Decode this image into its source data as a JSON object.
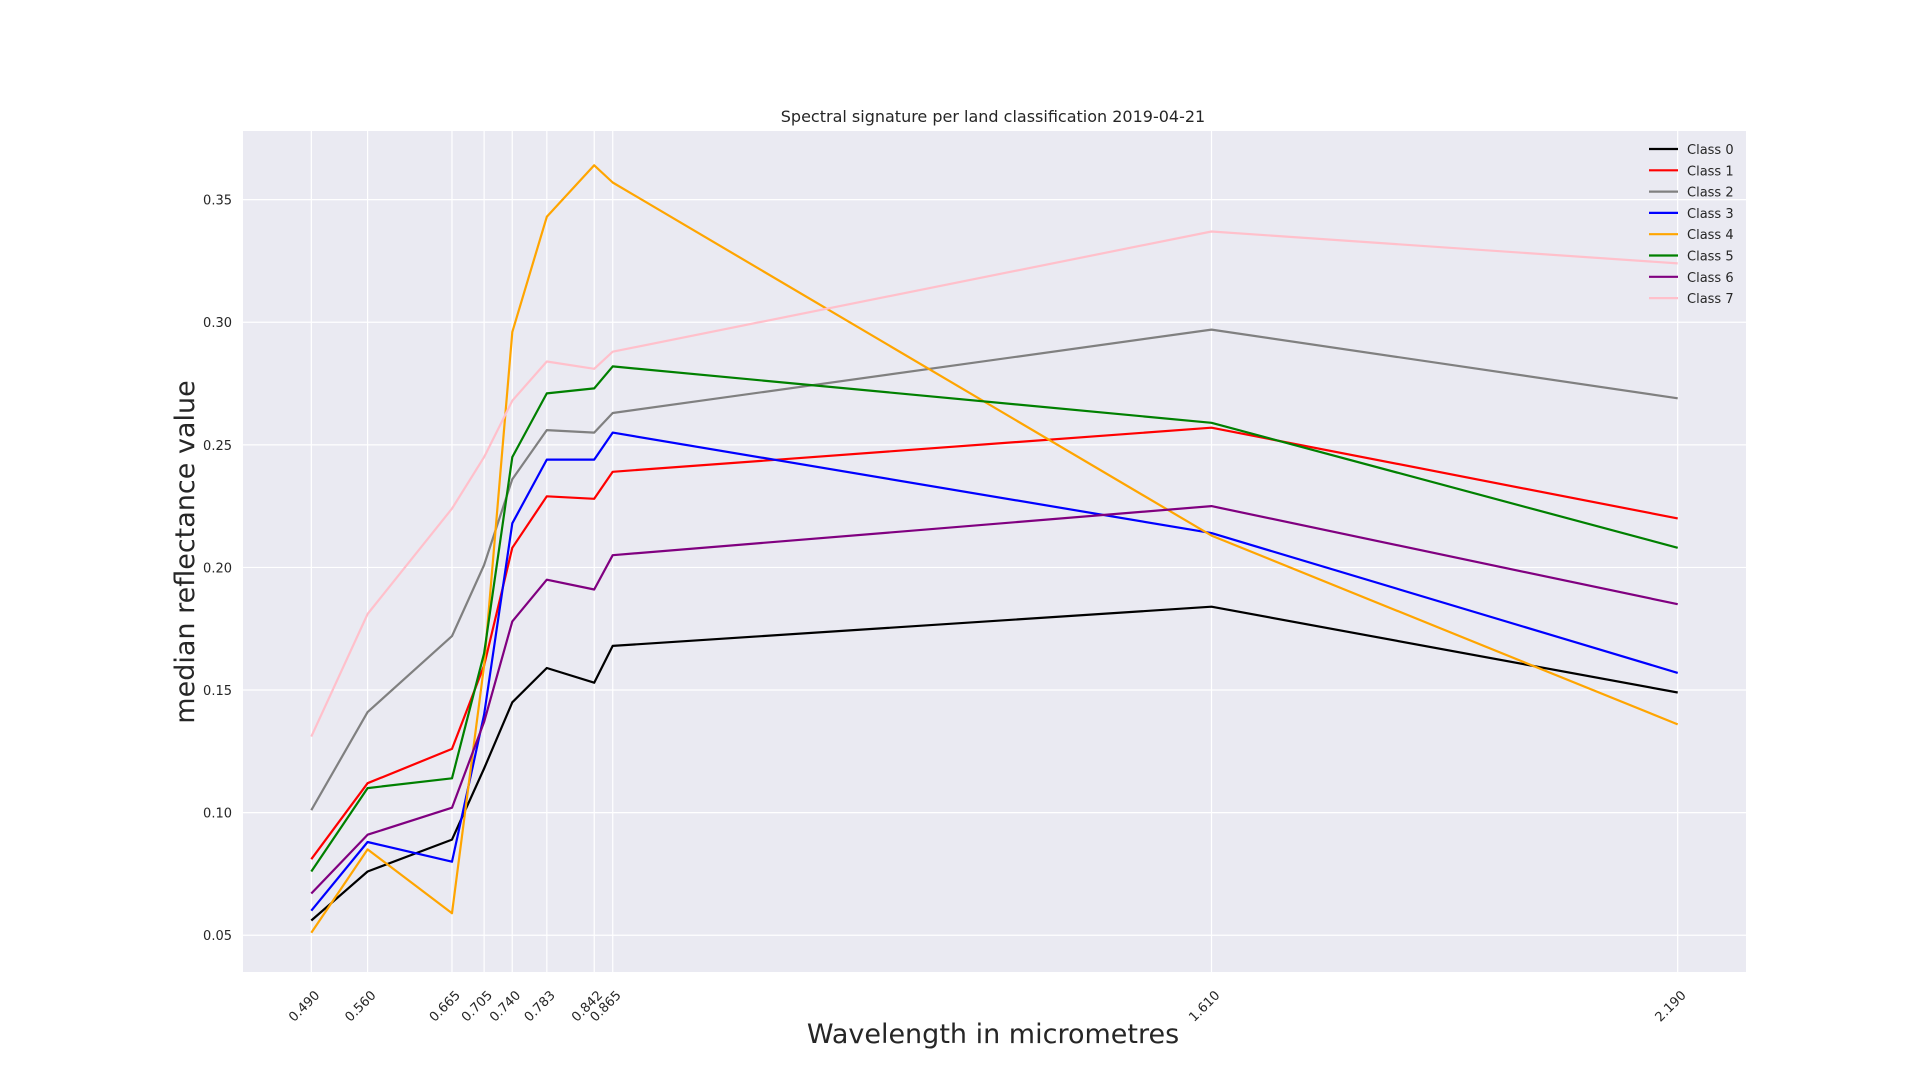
{
  "chart_data": {
    "type": "line",
    "title": "Spectral signature per land classification 2019-04-21",
    "xlabel": "Wavelength in micrometres",
    "ylabel": "median reflectance value",
    "x": [
      0.49,
      0.56,
      0.665,
      0.705,
      0.74,
      0.783,
      0.842,
      0.865,
      1.61,
      2.19
    ],
    "x_tick_labels": [
      "0.490",
      "0.560",
      "0.665",
      "0.705",
      "0.740",
      "0.783",
      "0.842",
      "0.865",
      "1.610",
      "2.190"
    ],
    "y_ticks": [
      0.05,
      0.1,
      0.15,
      0.2,
      0.25,
      0.3,
      0.35
    ],
    "y_tick_labels": [
      "0.05",
      "0.10",
      "0.15",
      "0.20",
      "0.25",
      "0.30",
      "0.35"
    ],
    "xlim": [
      0.405,
      2.275
    ],
    "ylim": [
      0.035,
      0.378
    ],
    "grid": true,
    "legend_position": "top-right",
    "series": [
      {
        "name": "Class 0",
        "color": "#000000",
        "values": [
          0.056,
          0.076,
          0.089,
          0.118,
          0.145,
          0.159,
          0.153,
          0.168,
          0.184,
          0.149
        ]
      },
      {
        "name": "Class 1",
        "color": "#ff0000",
        "values": [
          0.081,
          0.112,
          0.126,
          0.16,
          0.208,
          0.229,
          0.228,
          0.239,
          0.257,
          0.22
        ]
      },
      {
        "name": "Class 2",
        "color": "#808080",
        "values": [
          0.101,
          0.141,
          0.172,
          0.201,
          0.236,
          0.256,
          0.255,
          0.263,
          0.297,
          0.269
        ]
      },
      {
        "name": "Class 3",
        "color": "#0000ff",
        "values": [
          0.06,
          0.088,
          0.08,
          0.14,
          0.218,
          0.244,
          0.244,
          0.255,
          0.214,
          0.157
        ]
      },
      {
        "name": "Class 4",
        "color": "#ffa500",
        "values": [
          0.051,
          0.085,
          0.059,
          0.16,
          0.296,
          0.343,
          0.364,
          0.357,
          0.213,
          0.136
        ]
      },
      {
        "name": "Class 5",
        "color": "#008000",
        "values": [
          0.076,
          0.11,
          0.114,
          0.165,
          0.245,
          0.271,
          0.273,
          0.282,
          0.259,
          0.208
        ]
      },
      {
        "name": "Class 6",
        "color": "#800080",
        "values": [
          0.067,
          0.091,
          0.102,
          0.137,
          0.178,
          0.195,
          0.191,
          0.205,
          0.225,
          0.185
        ]
      },
      {
        "name": "Class 7",
        "color": "#ffc0cb",
        "values": [
          0.131,
          0.181,
          0.224,
          0.245,
          0.268,
          0.284,
          0.281,
          0.288,
          0.337,
          0.324
        ]
      }
    ]
  }
}
